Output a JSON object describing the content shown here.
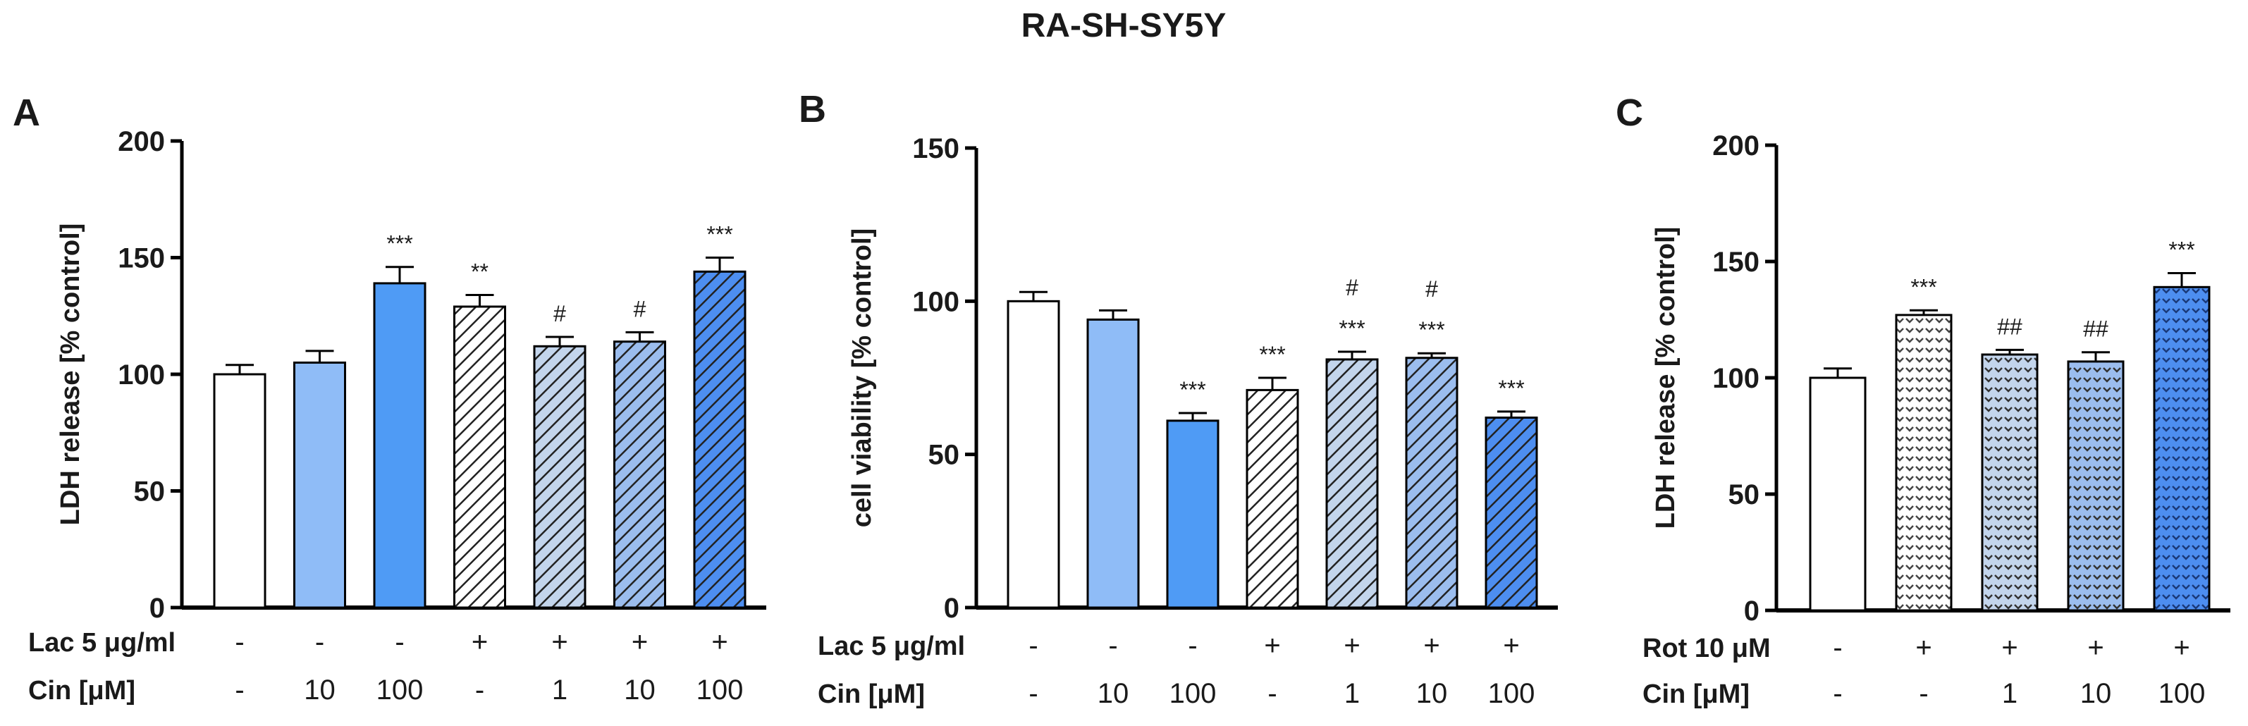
{
  "figure_title": "RA-SH-SY5Y",
  "colors": {
    "white": "#ffffff",
    "light": "#8fbcf7",
    "medium": "#4f9bf5",
    "pale": "#c3d5ec",
    "mid": "#9bbdee",
    "dark": "#4d8ef0",
    "axis": "#000000"
  },
  "chart_data": [
    {
      "panel": "A",
      "type": "bar",
      "ylabel": "LDH release [% control]",
      "ylim": [
        0,
        200
      ],
      "yticks": [
        0,
        50,
        100,
        150,
        200
      ],
      "values": [
        100,
        105,
        139,
        129,
        112,
        114,
        144
      ],
      "errors": [
        4,
        5,
        7,
        5,
        4,
        4,
        6
      ],
      "significance": [
        "",
        "",
        "***",
        "**",
        "#",
        "#",
        "***"
      ],
      "fills": [
        "white",
        "light",
        "medium",
        "hatch-white",
        "hatch-pale",
        "hatch-mid",
        "hatch-dark"
      ],
      "conditions": [
        {
          "label": "Lac 5 μg/ml",
          "values": [
            "-",
            "-",
            "-",
            "+",
            "+",
            "+",
            "+"
          ]
        },
        {
          "label": "Cin [μM]",
          "values": [
            "-",
            "10",
            "100",
            "-",
            "1",
            "10",
            "100"
          ]
        }
      ]
    },
    {
      "panel": "B",
      "type": "bar",
      "ylabel": "cell viability [% control]",
      "ylim": [
        0,
        150
      ],
      "yticks": [
        0,
        50,
        100,
        150
      ],
      "values": [
        100,
        94,
        61,
        71,
        81,
        81.5,
        62
      ],
      "errors": [
        3,
        3,
        2.5,
        4,
        2.5,
        1.5,
        2
      ],
      "significance": [
        "",
        "",
        "***",
        "***",
        "#\n***",
        "#\n***",
        "***"
      ],
      "fills": [
        "white",
        "light",
        "medium",
        "hatch-white",
        "hatch-pale",
        "hatch-mid",
        "hatch-dark"
      ],
      "conditions": [
        {
          "label": "Lac 5 μg/ml",
          "values": [
            "-",
            "-",
            "-",
            "+",
            "+",
            "+",
            "+"
          ]
        },
        {
          "label": "Cin [μM]",
          "values": [
            "-",
            "10",
            "100",
            "-",
            "1",
            "10",
            "100"
          ]
        }
      ]
    },
    {
      "panel": "C",
      "type": "bar",
      "ylabel": "LDH release [% control]",
      "ylim": [
        0,
        200
      ],
      "yticks": [
        0,
        50,
        100,
        150,
        200
      ],
      "values": [
        100,
        127,
        110,
        107,
        139
      ],
      "errors": [
        4,
        2,
        2,
        4,
        6
      ],
      "significance": [
        "",
        "***",
        "##",
        "##",
        "***"
      ],
      "fills": [
        "white",
        "dots-white",
        "dots-pale",
        "dots-mid",
        "dots-dark"
      ],
      "conditions": [
        {
          "label": "Rot 10 μM",
          "values": [
            "-",
            "+",
            "+",
            "+",
            "+"
          ]
        },
        {
          "label": "Cin [μM]",
          "values": [
            "-",
            "-",
            "1",
            "10",
            "100"
          ]
        }
      ]
    }
  ]
}
